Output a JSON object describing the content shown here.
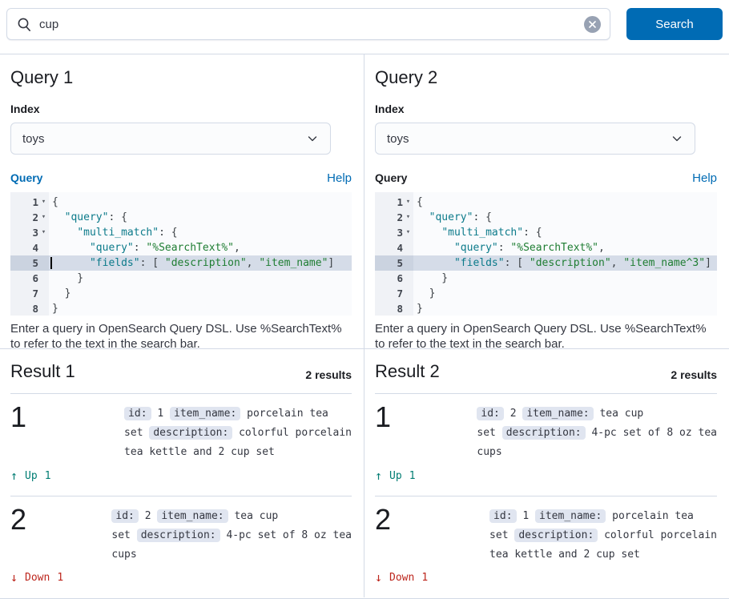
{
  "colors": {
    "primary": "#006BB4",
    "success": "#017D73",
    "danger": "#BD271E",
    "border": "#D3DAE6",
    "badge_bg": "#E0E5F0",
    "json_key": "#0B7A8A",
    "json_string": "#1E7D32"
  },
  "search_bar": {
    "value": "cup",
    "search_icon": "magnifier",
    "clear_icon": "cross-in-circle",
    "button_label": "Search"
  },
  "panels": [
    {
      "title": "Query 1",
      "index_label": "Index",
      "index_value": "toys",
      "query_label": "Query",
      "query_label_focused": true,
      "help_label": "Help",
      "caption": "Enter a query in OpenSearch Query DSL. Use %SearchText% to refer to the text in the search bar.",
      "editor": {
        "active_line": 5,
        "show_cursor": true,
        "lines": [
          {
            "n": 1,
            "fold": true,
            "tokens": [
              [
                "p",
                "{"
              ]
            ]
          },
          {
            "n": 2,
            "fold": true,
            "tokens": [
              [
                "p",
                "  "
              ],
              [
                "k",
                "\"query\""
              ],
              [
                "p",
                ": {"
              ]
            ]
          },
          {
            "n": 3,
            "fold": true,
            "tokens": [
              [
                "p",
                "    "
              ],
              [
                "k",
                "\"multi_match\""
              ],
              [
                "p",
                ": {"
              ]
            ]
          },
          {
            "n": 4,
            "fold": false,
            "tokens": [
              [
                "p",
                "      "
              ],
              [
                "k",
                "\"query\""
              ],
              [
                "p",
                ": "
              ],
              [
                "s",
                "\"%SearchText%\""
              ],
              [
                "p",
                ","
              ]
            ]
          },
          {
            "n": 5,
            "fold": false,
            "tokens": [
              [
                "p",
                "      "
              ],
              [
                "k",
                "\"fields\""
              ],
              [
                "p",
                ": [ "
              ],
              [
                "s",
                "\"description\""
              ],
              [
                "p",
                ", "
              ],
              [
                "s",
                "\"item_name\""
              ],
              [
                "p",
                "]"
              ]
            ]
          },
          {
            "n": 6,
            "fold": false,
            "tokens": [
              [
                "p",
                "    }"
              ]
            ]
          },
          {
            "n": 7,
            "fold": false,
            "tokens": [
              [
                "p",
                "  }"
              ]
            ]
          },
          {
            "n": 8,
            "fold": false,
            "tokens": [
              [
                "p",
                "}"
              ]
            ]
          }
        ]
      }
    },
    {
      "title": "Query 2",
      "index_label": "Index",
      "index_value": "toys",
      "query_label": "Query",
      "query_label_focused": false,
      "help_label": "Help",
      "caption": "Enter a query in OpenSearch Query DSL. Use %SearchText% to refer to the text in the search bar.",
      "editor": {
        "active_line": 5,
        "show_cursor": false,
        "lines": [
          {
            "n": 1,
            "fold": true,
            "tokens": [
              [
                "p",
                "{"
              ]
            ]
          },
          {
            "n": 2,
            "fold": true,
            "tokens": [
              [
                "p",
                "  "
              ],
              [
                "k",
                "\"query\""
              ],
              [
                "p",
                ": {"
              ]
            ]
          },
          {
            "n": 3,
            "fold": true,
            "tokens": [
              [
                "p",
                "    "
              ],
              [
                "k",
                "\"multi_match\""
              ],
              [
                "p",
                ": {"
              ]
            ]
          },
          {
            "n": 4,
            "fold": false,
            "tokens": [
              [
                "p",
                "      "
              ],
              [
                "k",
                "\"query\""
              ],
              [
                "p",
                ": "
              ],
              [
                "s",
                "\"%SearchText%\""
              ],
              [
                "p",
                ","
              ]
            ]
          },
          {
            "n": 5,
            "fold": false,
            "tokens": [
              [
                "p",
                "      "
              ],
              [
                "k",
                "\"fields\""
              ],
              [
                "p",
                ": [ "
              ],
              [
                "s",
                "\"description\""
              ],
              [
                "p",
                ", "
              ],
              [
                "s",
                "\"item_name^3\""
              ],
              [
                "p",
                "]"
              ]
            ]
          },
          {
            "n": 6,
            "fold": false,
            "tokens": [
              [
                "p",
                "    }"
              ]
            ]
          },
          {
            "n": 7,
            "fold": false,
            "tokens": [
              [
                "p",
                "  }"
              ]
            ]
          },
          {
            "n": 8,
            "fold": false,
            "tokens": [
              [
                "p",
                "}"
              ]
            ]
          }
        ]
      }
    }
  ],
  "results": [
    {
      "title": "Result 1",
      "count": "2 results",
      "items": [
        {
          "rank": "1",
          "movement": {
            "direction": "up",
            "arrow": "↑",
            "label": "Up",
            "value": "1"
          },
          "doc_lines": [
            [
              {
                "badge": "id:"
              },
              {
                "text": " 1 "
              },
              {
                "badge": "item_name:"
              },
              {
                "text": " porcelain tea"
              }
            ],
            [
              {
                "text": "set "
              },
              {
                "badge": "description:"
              },
              {
                "text": " colorful porcelain"
              }
            ],
            [
              {
                "text": "tea kettle and 2 cup set"
              }
            ]
          ]
        },
        {
          "rank": "2",
          "movement": {
            "direction": "down",
            "arrow": "↓",
            "label": "Down",
            "value": "1"
          },
          "doc_lines": [
            [
              {
                "badge": "id:"
              },
              {
                "text": " 2 "
              },
              {
                "badge": "item_name:"
              },
              {
                "text": " tea cup"
              }
            ],
            [
              {
                "text": "set "
              },
              {
                "badge": "description:"
              },
              {
                "text": " 4-pc set of 8 oz tea"
              }
            ],
            [
              {
                "text": "cups"
              }
            ]
          ]
        }
      ]
    },
    {
      "title": "Result 2",
      "count": "2 results",
      "items": [
        {
          "rank": "1",
          "movement": {
            "direction": "up",
            "arrow": "↑",
            "label": "Up",
            "value": "1"
          },
          "doc_lines": [
            [
              {
                "badge": "id:"
              },
              {
                "text": " 2 "
              },
              {
                "badge": "item_name:"
              },
              {
                "text": " tea cup"
              }
            ],
            [
              {
                "text": "set "
              },
              {
                "badge": "description:"
              },
              {
                "text": " 4-pc set of 8 oz tea"
              }
            ],
            [
              {
                "text": "cups"
              }
            ]
          ]
        },
        {
          "rank": "2",
          "movement": {
            "direction": "down",
            "arrow": "↓",
            "label": "Down",
            "value": "1"
          },
          "doc_lines": [
            [
              {
                "badge": "id:"
              },
              {
                "text": " 1 "
              },
              {
                "badge": "item_name:"
              },
              {
                "text": " porcelain tea"
              }
            ],
            [
              {
                "text": "set "
              },
              {
                "badge": "description:"
              },
              {
                "text": " colorful porcelain"
              }
            ],
            [
              {
                "text": "tea kettle and 2 cup set"
              }
            ]
          ]
        }
      ]
    }
  ]
}
